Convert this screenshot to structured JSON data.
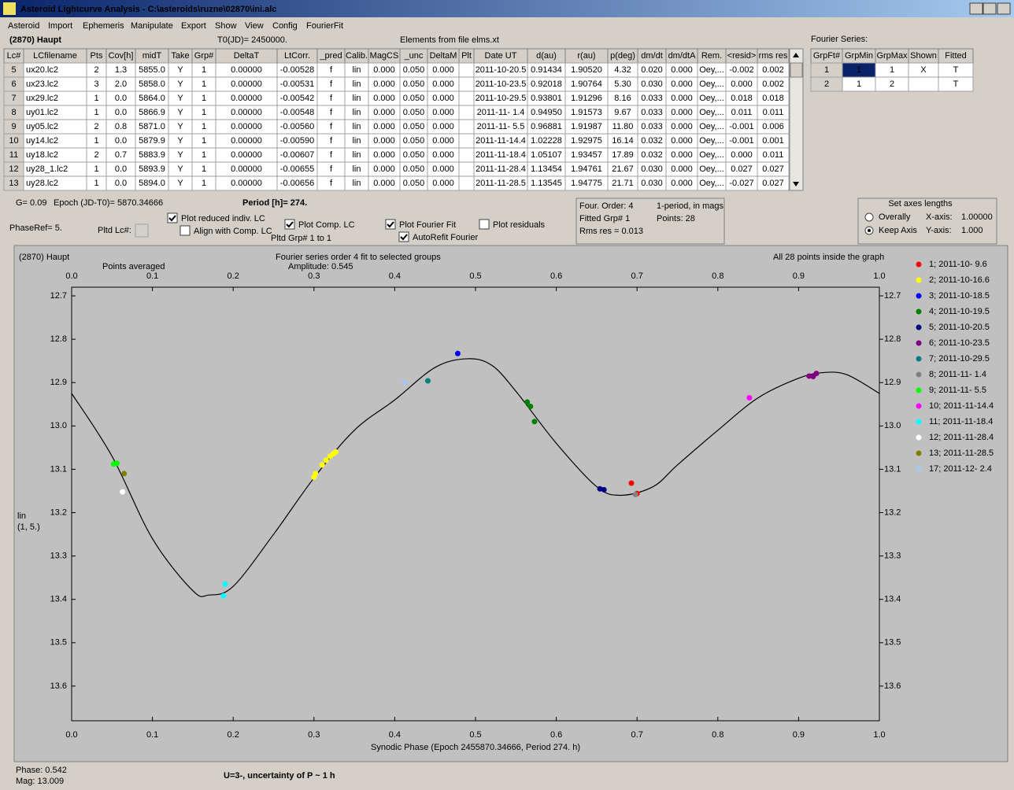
{
  "window": {
    "title": "Asteroid Lightcurve Analysis - C:\\asteroids\\ruzne\\02870\\ini.alc"
  },
  "menu": [
    "Asteroid",
    "Import",
    "Ephemeris",
    "Manipulate",
    "Export",
    "Show",
    "View",
    "Config",
    "FourierFit"
  ],
  "header": {
    "object": "(2870) Haupt",
    "t0": "T0(JD)= 2450000.",
    "elements": "Elements from file elms.xt"
  },
  "lc_table": {
    "columns": [
      "Lc#",
      "LCfilename",
      "Pts",
      "Cov[h]",
      "midT",
      "Take",
      "Grp#",
      "DeltaT",
      "LtCorr.",
      "_pred",
      "Calib.",
      "MagCS",
      "_unc",
      "DeltaM",
      "Plt",
      "Date UT",
      "d(au)",
      "r(au)",
      "p(deg)",
      "dm/dt",
      "dm/dtA",
      "Rem.",
      "<resid>",
      "rms res"
    ],
    "rows": [
      [
        "5",
        "ux20.lc2",
        "2",
        "1.3",
        "5855.0",
        "Y",
        "1",
        "0.00000",
        "-0.00528",
        "f",
        "lin",
        "0.000",
        "0.050",
        "0.000",
        null,
        "2011-10-20.5",
        "0.91434",
        "1.90520",
        "4.32",
        "0.020",
        "0.000",
        "Oey,...",
        "-0.002",
        "0.002"
      ],
      [
        "6",
        "ux23.lc2",
        "3",
        "2.0",
        "5858.0",
        "Y",
        "1",
        "0.00000",
        "-0.00531",
        "f",
        "lin",
        "0.000",
        "0.050",
        "0.000",
        null,
        "2011-10-23.5",
        "0.92018",
        "1.90764",
        "5.30",
        "0.030",
        "0.000",
        "Oey,...",
        "0.000",
        "0.002"
      ],
      [
        "7",
        "ux29.lc2",
        "1",
        "0.0",
        "5864.0",
        "Y",
        "1",
        "0.00000",
        "-0.00542",
        "f",
        "lin",
        "0.000",
        "0.050",
        "0.000",
        null,
        "2011-10-29.5",
        "0.93801",
        "1.91296",
        "8.16",
        "0.033",
        "0.000",
        "Oey,...",
        "0.018",
        "0.018"
      ],
      [
        "8",
        "uy01.lc2",
        "1",
        "0.0",
        "5866.9",
        "Y",
        "1",
        "0.00000",
        "-0.00548",
        "f",
        "lin",
        "0.000",
        "0.050",
        "0.000",
        null,
        "2011-11- 1.4",
        "0.94950",
        "1.91573",
        "9.67",
        "0.033",
        "0.000",
        "Oey,...",
        "0.011",
        "0.011"
      ],
      [
        "9",
        "uy05.lc2",
        "2",
        "0.8",
        "5871.0",
        "Y",
        "1",
        "0.00000",
        "-0.00560",
        "f",
        "lin",
        "0.000",
        "0.050",
        "0.000",
        null,
        "2011-11- 5.5",
        "0.96881",
        "1.91987",
        "11.80",
        "0.033",
        "0.000",
        "Oey,...",
        "-0.001",
        "0.006"
      ],
      [
        "10",
        "uy14.lc2",
        "1",
        "0.0",
        "5879.9",
        "Y",
        "1",
        "0.00000",
        "-0.00590",
        "f",
        "lin",
        "0.000",
        "0.050",
        "0.000",
        null,
        "2011-11-14.4",
        "1.02228",
        "1.92975",
        "16.14",
        "0.032",
        "0.000",
        "Oey,...",
        "-0.001",
        "0.001"
      ],
      [
        "11",
        "uy18.lc2",
        "2",
        "0.7",
        "5883.9",
        "Y",
        "1",
        "0.00000",
        "-0.00607",
        "f",
        "lin",
        "0.000",
        "0.050",
        "0.000",
        null,
        "2011-11-18.4",
        "1.05107",
        "1.93457",
        "17.89",
        "0.032",
        "0.000",
        "Oey,...",
        "0.000",
        "0.011"
      ],
      [
        "12",
        "uy28_1.lc2",
        "1",
        "0.0",
        "5893.9",
        "Y",
        "1",
        "0.00000",
        "-0.00655",
        "f",
        "lin",
        "0.000",
        "0.050",
        "0.000",
        null,
        "2011-11-28.4",
        "1.13454",
        "1.94761",
        "21.67",
        "0.030",
        "0.000",
        "Oey,...",
        "0.027",
        "0.027"
      ],
      [
        "13",
        "uy28.lc2",
        "1",
        "0.0",
        "5894.0",
        "Y",
        "1",
        "0.00000",
        "-0.00656",
        "f",
        "lin",
        "0.000",
        "0.050",
        "0.000",
        null,
        "2011-11-28.5",
        "1.13545",
        "1.94775",
        "21.71",
        "0.030",
        "0.000",
        "Oey,...",
        "-0.027",
        "0.027"
      ]
    ]
  },
  "fourier_table": {
    "label": "Fourier Series:",
    "columns": [
      "GrpFt#",
      "GrpMin",
      "GrpMax",
      "Shown",
      "Fitted"
    ],
    "rows": [
      [
        "1",
        "1",
        "1",
        "X",
        "T"
      ],
      [
        "2",
        "1",
        "2",
        null,
        "T"
      ]
    ]
  },
  "controls": {
    "g": "G= 0.09",
    "epoch": "Epoch (JD-T0)= 5870.34666",
    "period": "Period [h]= 274.",
    "phase_ref": "PhaseRef= 5.",
    "pltd_lc": "Pltd Lc#:",
    "pltd_grp": "Pltd Grp#  1  to  1",
    "checkboxes": [
      {
        "label": "Plot reduced indiv. LC",
        "checked": true
      },
      {
        "label": "Align with Comp. LC",
        "checked": false
      },
      {
        "label": "Plot Comp. LC",
        "checked": true
      },
      {
        "label": "Plot Fourier Fit",
        "checked": true
      },
      {
        "label": "AutoRefit Fourier",
        "checked": true
      },
      {
        "label": "Plot residuals",
        "checked": false
      }
    ]
  },
  "fit_info": [
    "Four. Order:  4",
    "1-period, in mags",
    "Fitted Grp# 1",
    "Points: 28",
    "Rms res     = 0.013"
  ],
  "axes_box": {
    "title": "Set axes lengths",
    "options": [
      {
        "label": "Overally",
        "selected": false
      },
      {
        "label": "Keep Axis",
        "selected": true
      }
    ],
    "x_axis": "X-axis:",
    "x_value": "1.00000",
    "y_axis": "Y-axis:",
    "y_value": "1.000"
  },
  "chart_data": {
    "type": "scatter",
    "title": "Fourier series order 4 fit to selected groups",
    "subtitle": "Amplitude: 0.545",
    "annotations": [
      "(2870) Haupt",
      "All 28 points inside the graph",
      "Points averaged"
    ],
    "xlabel": "Synodic Phase (Epoch 2455870.34666, Period 274. h)",
    "ylabel": [
      "lin",
      "(1, 5.)"
    ],
    "xlim": [
      0,
      1
    ],
    "xticks": [
      {
        "value": 0,
        "label": "0.0"
      },
      0.1,
      0.2,
      0.3,
      0.4,
      0.5,
      0.6,
      0.7,
      0.8,
      0.9,
      {
        "value": 1,
        "label": "1.0"
      }
    ],
    "ylim": [
      12.68,
      13.68
    ],
    "y_inverted": true,
    "yticks": [
      12.7,
      12.8,
      12.9,
      {
        "value": 13,
        "label": "13.0"
      },
      13.1,
      13.2,
      13.3,
      13.4,
      13.5,
      13.6
    ],
    "series": [
      {
        "name": "1; 2011-10- 9.6",
        "color": "#ff0000",
        "x": [
          0.693,
          0.7
        ],
        "values": [
          13.132,
          13.156
        ]
      },
      {
        "name": "2; 2011-10-16.6",
        "color": "#ffff00",
        "x": [
          0.3,
          0.302,
          0.31,
          0.315,
          0.32,
          0.324,
          0.327
        ],
        "values": [
          13.118,
          13.11,
          13.09,
          13.079,
          13.07,
          13.064,
          13.06
        ]
      },
      {
        "name": "3; 2011-10-18.5",
        "color": "#0000ff",
        "x": [
          0.478
        ],
        "values": [
          12.833
        ]
      },
      {
        "name": "4; 2011-10-19.5",
        "color": "#008000",
        "x": [
          0.564,
          0.568,
          0.573
        ],
        "values": [
          12.945,
          12.955,
          12.99
        ]
      },
      {
        "name": "5; 2011-10-20.5",
        "color": "#000080",
        "x": [
          0.654,
          0.659
        ],
        "values": [
          13.145,
          13.147
        ]
      },
      {
        "name": "6; 2011-10-23.5",
        "color": "#800080",
        "x": [
          0.913,
          0.918,
          0.922
        ],
        "values": [
          12.885,
          12.886,
          12.879
        ]
      },
      {
        "name": "7; 2011-10-29.5",
        "color": "#008080",
        "x": [
          0.441
        ],
        "values": [
          12.896
        ]
      },
      {
        "name": "8; 2011-11- 1.4",
        "color": "#808080",
        "x": [
          0.698
        ],
        "values": [
          13.158
        ]
      },
      {
        "name": "9; 2011-11- 5.5",
        "color": "#00ff00",
        "x": [
          0.052,
          0.056
        ],
        "values": [
          13.088,
          13.086
        ]
      },
      {
        "name": "10; 2011-11-14.4",
        "color": "#ff00ff",
        "x": [
          0.839
        ],
        "values": [
          12.935
        ]
      },
      {
        "name": "11; 2011-11-18.4",
        "color": "#00ffff",
        "x": [
          0.19,
          0.188
        ],
        "values": [
          13.365,
          13.392
        ]
      },
      {
        "name": "12; 2011-11-28.4",
        "color": "#ffffff",
        "x": [
          0.063
        ],
        "values": [
          13.152
        ]
      },
      {
        "name": "13; 2011-11-28.5",
        "color": "#808000",
        "x": [
          0.065
        ],
        "values": [
          13.11
        ]
      },
      {
        "name": "17; 2011-12- 2.4",
        "color": "#a6c8f0",
        "x": [
          0.412
        ],
        "values": [
          12.9
        ]
      }
    ],
    "fit": {
      "color": "#000000",
      "x": [
        0,
        0.05,
        0.1,
        0.15,
        0.17,
        0.2,
        0.25,
        0.3,
        0.35,
        0.4,
        0.45,
        0.49,
        0.52,
        0.55,
        0.6,
        0.65,
        0.68,
        0.72,
        0.75,
        0.8,
        0.85,
        0.9,
        0.93,
        0.96,
        1
      ],
      "values": [
        12.925,
        13.07,
        13.26,
        13.38,
        13.39,
        13.37,
        13.25,
        13.12,
        13.01,
        12.94,
        12.865,
        12.845,
        12.86,
        12.92,
        13.04,
        13.14,
        13.16,
        13.14,
        13.09,
        13.01,
        12.935,
        12.89,
        12.877,
        12.882,
        12.925
      ]
    }
  },
  "status": {
    "phase": "Phase:  0.542",
    "mag": "Mag:   13.009",
    "uncertainty": "U=3-, uncertainty of P ~ 1 h"
  }
}
